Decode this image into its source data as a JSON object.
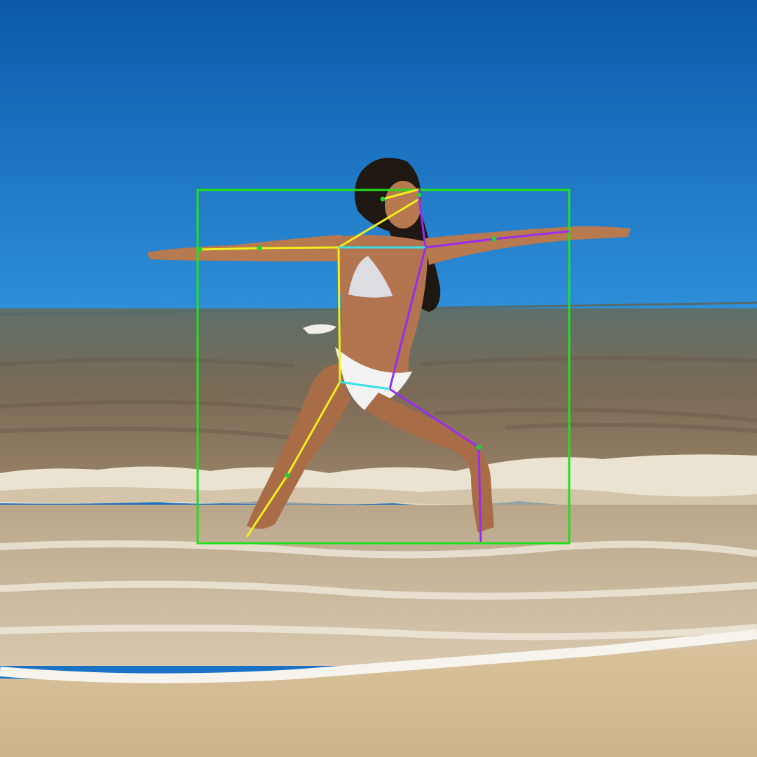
{
  "scene": {
    "colors": {
      "sky_top": "#0b5aa8",
      "sky_bottom": "#2f8fd9",
      "sea_far": "#5e6f6a",
      "sea_mid": "#7a6a55",
      "sea_near": "#9a8368",
      "foam": "#f1ece2",
      "sand": "#d9c29b",
      "skin": "#b7794f",
      "hair": "#1f1712",
      "bikini": "#f3f3f3"
    }
  },
  "overlay": {
    "bounding_box_color": "#22e01c",
    "limb_colors": {
      "left_side": "#f2ee1b",
      "right_side": "#9a2cf0",
      "center": "#35e0e8"
    },
    "keypoint_color": "#1fd33a"
  }
}
